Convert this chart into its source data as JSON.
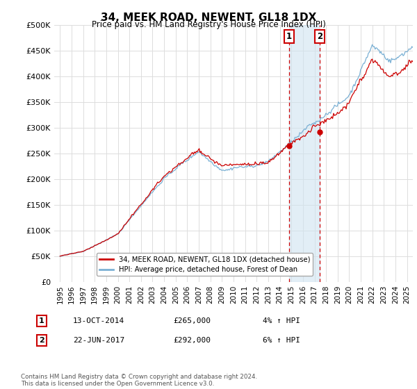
{
  "title": "34, MEEK ROAD, NEWENT, GL18 1DX",
  "subtitle": "Price paid vs. HM Land Registry's House Price Index (HPI)",
  "ylabel_ticks": [
    "£0",
    "£50K",
    "£100K",
    "£150K",
    "£200K",
    "£250K",
    "£300K",
    "£350K",
    "£400K",
    "£450K",
    "£500K"
  ],
  "ytick_values": [
    0,
    50000,
    100000,
    150000,
    200000,
    250000,
    300000,
    350000,
    400000,
    450000,
    500000
  ],
  "xlim_start": 1994.5,
  "xlim_end": 2025.5,
  "ylim": [
    0,
    500000
  ],
  "line1_color": "#cc0000",
  "line2_color": "#7ab0d4",
  "vline1_x": 2014.78,
  "vline2_x": 2017.47,
  "vline1_y": 265000,
  "vline2_y": 292000,
  "shade_color": "#d0e4f0",
  "label1": "34, MEEK ROAD, NEWENT, GL18 1DX (detached house)",
  "label2": "HPI: Average price, detached house, Forest of Dean",
  "annotation1_num": "1",
  "annotation1_date": "13-OCT-2014",
  "annotation1_price": "£265,000",
  "annotation1_pct": "4% ↑ HPI",
  "annotation2_num": "2",
  "annotation2_date": "22-JUN-2017",
  "annotation2_price": "£292,000",
  "annotation2_pct": "6% ↑ HPI",
  "footer": "Contains HM Land Registry data © Crown copyright and database right 2024.\nThis data is licensed under the Open Government Licence v3.0.",
  "background_color": "#ffffff",
  "grid_color": "#dddddd",
  "xtick_years": [
    1995,
    1996,
    1997,
    1998,
    1999,
    2000,
    2001,
    2002,
    2003,
    2004,
    2005,
    2006,
    2007,
    2008,
    2009,
    2010,
    2011,
    2012,
    2013,
    2014,
    2015,
    2016,
    2017,
    2018,
    2019,
    2020,
    2021,
    2022,
    2023,
    2024,
    2025
  ]
}
